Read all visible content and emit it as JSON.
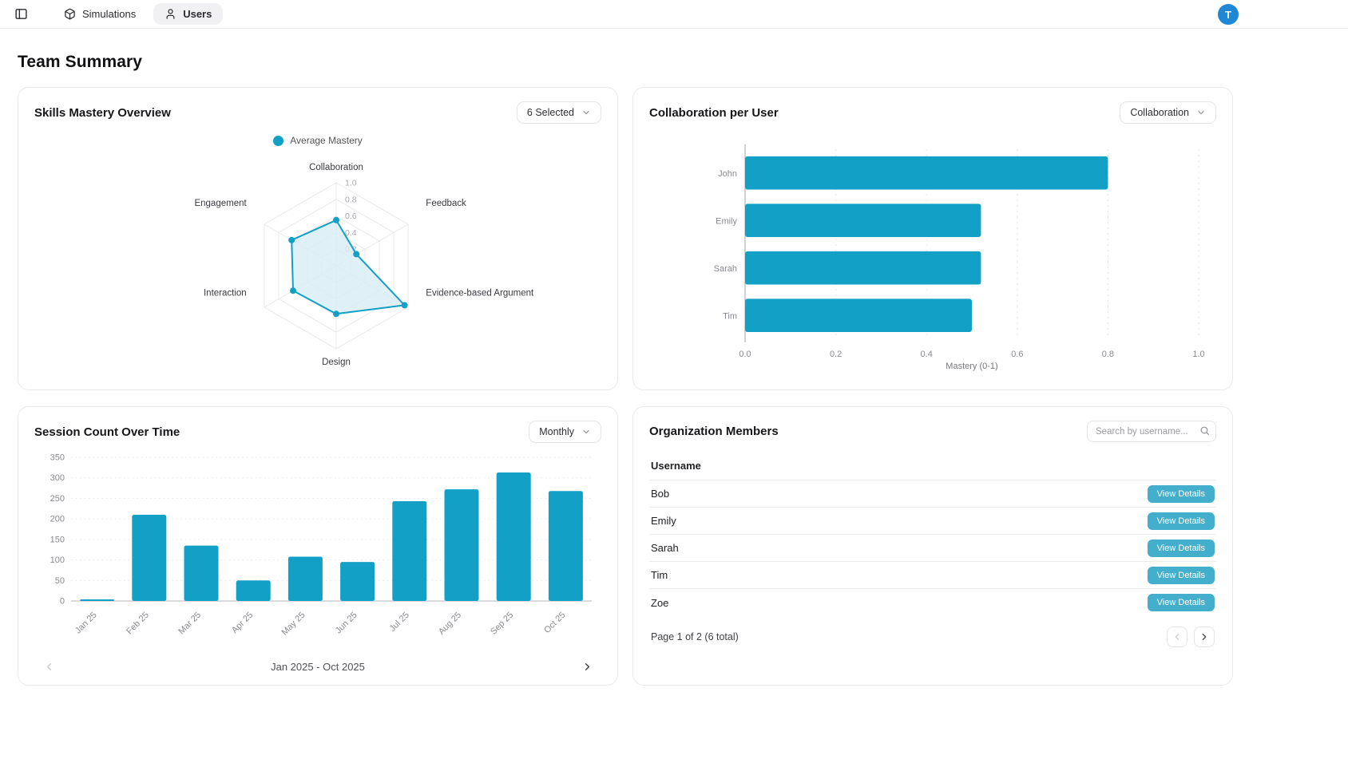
{
  "topbar": {
    "simulations_label": "Simulations",
    "users_label": "Users",
    "avatar_initial": "T"
  },
  "page_title": "Team Summary",
  "skills_panel": {
    "title": "Skills Mastery Overview",
    "filter_value": "6 Selected",
    "legend_label": "Average Mastery"
  },
  "collab_panel": {
    "title": "Collaboration per User",
    "filter_value": "Collaboration"
  },
  "sessions_panel": {
    "title": "Session Count Over Time",
    "filter_value": "Monthly",
    "range_label": "Jan 2025 - Oct 2025"
  },
  "members_panel": {
    "title": "Organization Members",
    "search_placeholder": "Search by username...",
    "username_header": "Username",
    "members": [
      "Bob",
      "Emily",
      "Sarah",
      "Tim",
      "Zoe"
    ],
    "view_details_label": "View Details",
    "pagination_label": "Page 1 of 2 (6 total)"
  },
  "colors": {
    "accent": "#12A0C7",
    "accent_fill": "#D7EDF4",
    "button_teal": "#43AFCD",
    "avatar_blue": "#1E87D6"
  },
  "chart_data": [
    {
      "id": "skills-radar",
      "type": "radar",
      "title": "Skills Mastery Overview",
      "legend": [
        "Average Mastery"
      ],
      "categories": [
        "Collaboration",
        "Feedback",
        "Evidence-based Argument",
        "Design",
        "Interaction",
        "Engagement"
      ],
      "values": [
        0.55,
        0.28,
        0.95,
        0.58,
        0.6,
        0.62
      ],
      "rlim": [
        0,
        1
      ],
      "ticks": [
        0.2,
        0.4,
        0.6,
        0.8,
        1.0
      ],
      "grid": true
    },
    {
      "id": "collab-bars",
      "type": "bar",
      "orientation": "horizontal",
      "title": "Collaboration per User",
      "categories": [
        "John",
        "Emily",
        "Sarah",
        "Tim"
      ],
      "values": [
        0.8,
        0.52,
        0.52,
        0.5
      ],
      "xlabel": "Mastery (0-1)",
      "xlim": [
        0,
        1
      ],
      "xticks": [
        0,
        0.2,
        0.4,
        0.6,
        0.8,
        1.0
      ],
      "grid": true
    },
    {
      "id": "sessions-bars",
      "type": "bar",
      "orientation": "vertical",
      "title": "Session Count Over Time",
      "categories": [
        "Jan 25",
        "Feb 25",
        "Mar 25",
        "Apr 25",
        "May 25",
        "Jun 25",
        "Jul 25",
        "Aug 25",
        "Sep 25",
        "Oct 25"
      ],
      "values": [
        3,
        210,
        135,
        50,
        108,
        95,
        243,
        272,
        313,
        268
      ],
      "ylim": [
        0,
        350
      ],
      "yticks": [
        0,
        50,
        100,
        150,
        200,
        250,
        300,
        350
      ],
      "grid": true
    }
  ]
}
